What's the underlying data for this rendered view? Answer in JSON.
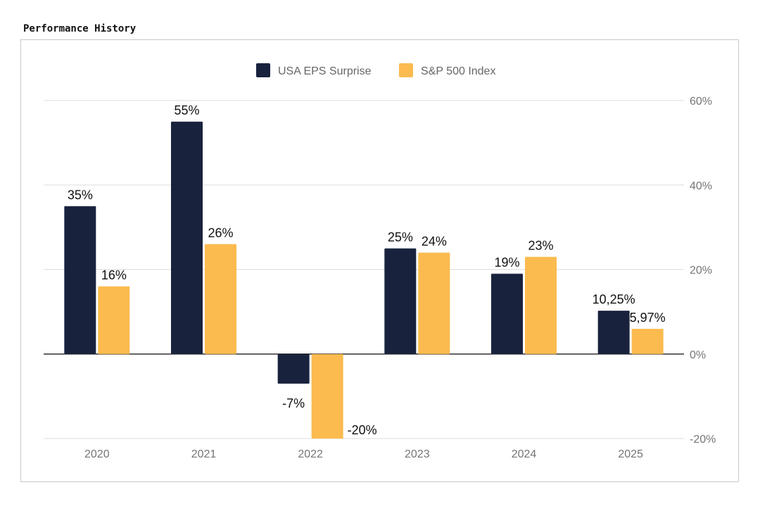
{
  "title": "Performance History",
  "chart_data": {
    "type": "bar",
    "categories": [
      "2020",
      "2021",
      "2022",
      "2023",
      "2024",
      "2025"
    ],
    "series": [
      {
        "name": "USA EPS Surprise",
        "color": "#19223d",
        "values": [
          35,
          55,
          -7,
          25,
          19,
          10.25
        ],
        "labels": [
          "35%",
          "55%",
          "-7%",
          "25%",
          "19%",
          "10,25%"
        ]
      },
      {
        "name": "S&P 500 Index",
        "color": "#fbbb4f",
        "values": [
          16,
          26,
          -20,
          24,
          23,
          5.97
        ],
        "labels": [
          "16%",
          "26%",
          "-20%",
          "24%",
          "23%",
          "5,97%"
        ]
      }
    ],
    "ylim": [
      -20,
      60
    ],
    "yticks": [
      60,
      40,
      20,
      0,
      -20
    ],
    "ytick_labels": [
      "60%",
      "40%",
      "20%",
      "0%",
      "-20%"
    ],
    "y_axis_side": "right",
    "grid": true,
    "legend": "top-center"
  }
}
